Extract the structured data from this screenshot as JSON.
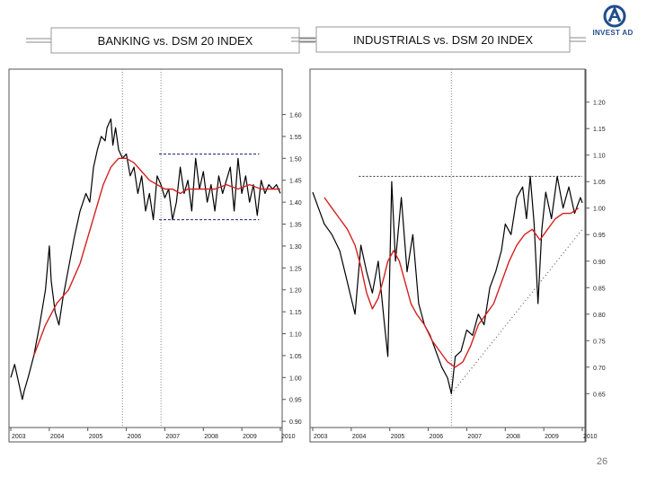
{
  "slide": {
    "page_number": "26",
    "logo": {
      "name": "INVEST AD",
      "color": "#1f4e8c"
    }
  },
  "colors": {
    "price_line": "#000000",
    "moving_average": "#d42020",
    "channel_lines": "#1a237e",
    "support_line": "#444444",
    "frame": "#555555"
  },
  "chart_data": [
    {
      "type": "line",
      "title": "BANKING vs. DSM 20 INDEX",
      "x_ticks": [
        "2003",
        "2004",
        "2005",
        "2006",
        "2007",
        "2008",
        "2009",
        "2010"
      ],
      "xlim": [
        2003,
        2010
      ],
      "y_ticks": [
        "1.60",
        "1.55",
        "1.50",
        "1.45",
        "1.40",
        "1.35",
        "1.30",
        "1.25",
        "1.20",
        "1.15",
        "1.10",
        "1.05",
        "1.00",
        "0.95",
        "0.90"
      ],
      "ylim": [
        0.89,
        1.64
      ],
      "y_axis": "right",
      "vertical_markers": [
        2005.9,
        2006.9
      ],
      "series": [
        {
          "kind": "price",
          "x": [
            2003.0,
            2003.1,
            2003.2,
            2003.3,
            2003.35,
            2003.45,
            2003.6,
            2003.75,
            2003.9,
            2004.0,
            2004.05,
            2004.15,
            2004.25,
            2004.35,
            2004.5,
            2004.65,
            2004.8,
            2004.95,
            2005.05,
            2005.15,
            2005.25,
            2005.35,
            2005.45,
            2005.5,
            2005.6,
            2005.65,
            2005.72,
            2005.8,
            2005.9,
            2006.0,
            2006.1,
            2006.2,
            2006.3,
            2006.4,
            2006.5,
            2006.6,
            2006.7,
            2006.8,
            2006.9,
            2007.0,
            2007.1,
            2007.2,
            2007.3,
            2007.4,
            2007.5,
            2007.6,
            2007.7,
            2007.8,
            2007.9,
            2008.0,
            2008.1,
            2008.2,
            2008.3,
            2008.4,
            2008.5,
            2008.6,
            2008.7,
            2008.8,
            2008.9,
            2009.0,
            2009.1,
            2009.2,
            2009.3,
            2009.4,
            2009.5,
            2009.6,
            2009.7,
            2009.8,
            2009.9,
            2010.0
          ],
          "y": [
            1.0,
            1.03,
            0.99,
            0.95,
            0.97,
            1.0,
            1.05,
            1.12,
            1.2,
            1.3,
            1.22,
            1.15,
            1.12,
            1.18,
            1.25,
            1.32,
            1.38,
            1.42,
            1.4,
            1.48,
            1.52,
            1.55,
            1.54,
            1.57,
            1.59,
            1.53,
            1.57,
            1.52,
            1.5,
            1.51,
            1.46,
            1.48,
            1.42,
            1.46,
            1.38,
            1.42,
            1.36,
            1.46,
            1.44,
            1.41,
            1.43,
            1.36,
            1.4,
            1.48,
            1.42,
            1.45,
            1.38,
            1.5,
            1.43,
            1.47,
            1.4,
            1.44,
            1.38,
            1.46,
            1.42,
            1.45,
            1.48,
            1.38,
            1.5,
            1.42,
            1.46,
            1.4,
            1.44,
            1.37,
            1.45,
            1.42,
            1.44,
            1.43,
            1.44,
            1.42
          ]
        },
        {
          "kind": "moving_average",
          "x": [
            2003.6,
            2003.9,
            2004.2,
            2004.5,
            2004.8,
            2005.0,
            2005.2,
            2005.4,
            2005.6,
            2005.8,
            2006.0,
            2006.2,
            2006.4,
            2006.6,
            2006.8,
            2007.0,
            2007.2,
            2007.4,
            2007.6,
            2007.8,
            2008.0,
            2008.3,
            2008.6,
            2008.9,
            2009.2,
            2009.5,
            2009.8,
            2010.0
          ],
          "y": [
            1.05,
            1.12,
            1.17,
            1.2,
            1.26,
            1.32,
            1.38,
            1.44,
            1.48,
            1.5,
            1.5,
            1.49,
            1.47,
            1.45,
            1.44,
            1.43,
            1.43,
            1.42,
            1.43,
            1.43,
            1.43,
            1.43,
            1.44,
            1.43,
            1.44,
            1.43,
            1.43,
            1.43
          ]
        }
      ],
      "channel": {
        "upper": 1.51,
        "lower": 1.36,
        "x_start": 2006.85,
        "x_end": 2009.45
      }
    },
    {
      "type": "line",
      "title": "INDUSTRIALS vs. DSM 20 INDEX",
      "x_ticks": [
        "2003",
        "2004",
        "2005",
        "2006",
        "2007",
        "2008",
        "2009",
        "2010"
      ],
      "xlim": [
        2003,
        2010
      ],
      "y_ticks": [
        "1.20",
        "1.15",
        "1.10",
        "1.05",
        "1.00",
        "0.95",
        "0.90",
        "0.85",
        "0.80",
        "0.75",
        "0.70",
        "0.65"
      ],
      "ylim": [
        0.62,
        1.23
      ],
      "y_axis": "right",
      "vertical_markers": [
        2006.6
      ],
      "series": [
        {
          "kind": "price",
          "x": [
            2003.0,
            2003.15,
            2003.3,
            2003.5,
            2003.7,
            2003.9,
            2004.1,
            2004.25,
            2004.4,
            2004.55,
            2004.7,
            2004.85,
            2004.95,
            2005.05,
            2005.15,
            2005.3,
            2005.45,
            2005.6,
            2005.75,
            2005.9,
            2006.05,
            2006.2,
            2006.35,
            2006.5,
            2006.6,
            2006.7,
            2006.85,
            2007.0,
            2007.15,
            2007.3,
            2007.45,
            2007.6,
            2007.75,
            2007.9,
            2008.0,
            2008.15,
            2008.3,
            2008.45,
            2008.55,
            2008.65,
            2008.75,
            2008.85,
            2008.95,
            2009.05,
            2009.2,
            2009.35,
            2009.5,
            2009.65,
            2009.8,
            2009.95,
            2010.0
          ],
          "y": [
            1.03,
            1.0,
            0.97,
            0.95,
            0.92,
            0.86,
            0.8,
            0.93,
            0.88,
            0.84,
            0.9,
            0.79,
            0.72,
            1.05,
            0.9,
            1.02,
            0.88,
            0.95,
            0.82,
            0.78,
            0.76,
            0.73,
            0.7,
            0.68,
            0.65,
            0.72,
            0.73,
            0.77,
            0.76,
            0.8,
            0.78,
            0.85,
            0.88,
            0.92,
            0.97,
            0.95,
            1.02,
            1.04,
            0.98,
            1.06,
            0.97,
            0.82,
            0.96,
            1.03,
            0.98,
            1.06,
            1.0,
            1.04,
            0.99,
            1.02,
            1.01
          ]
        },
        {
          "kind": "moving_average",
          "x": [
            2003.3,
            2003.5,
            2003.7,
            2003.9,
            2004.1,
            2004.25,
            2004.4,
            2004.55,
            2004.7,
            2004.85,
            2004.95,
            2005.1,
            2005.25,
            2005.4,
            2005.55,
            2005.7,
            2005.9,
            2006.1,
            2006.3,
            2006.5,
            2006.7,
            2006.9,
            2007.1,
            2007.3,
            2007.5,
            2007.7,
            2007.9,
            2008.1,
            2008.3,
            2008.5,
            2008.7,
            2008.9,
            2009.1,
            2009.3,
            2009.5,
            2009.7,
            2009.9
          ],
          "y": [
            1.02,
            1.0,
            0.98,
            0.96,
            0.93,
            0.89,
            0.84,
            0.81,
            0.83,
            0.87,
            0.9,
            0.92,
            0.9,
            0.86,
            0.82,
            0.8,
            0.78,
            0.75,
            0.73,
            0.71,
            0.7,
            0.71,
            0.74,
            0.78,
            0.8,
            0.82,
            0.86,
            0.9,
            0.93,
            0.95,
            0.96,
            0.94,
            0.96,
            0.98,
            0.99,
            0.99,
            1.0
          ]
        }
      ],
      "resistance": {
        "y": 1.06,
        "x_start": 2004.2,
        "x_end": 2010.0
      },
      "support": {
        "x_start": 2006.6,
        "y_start": 0.65,
        "x_end": 2010.0,
        "y_end": 0.96
      }
    }
  ]
}
